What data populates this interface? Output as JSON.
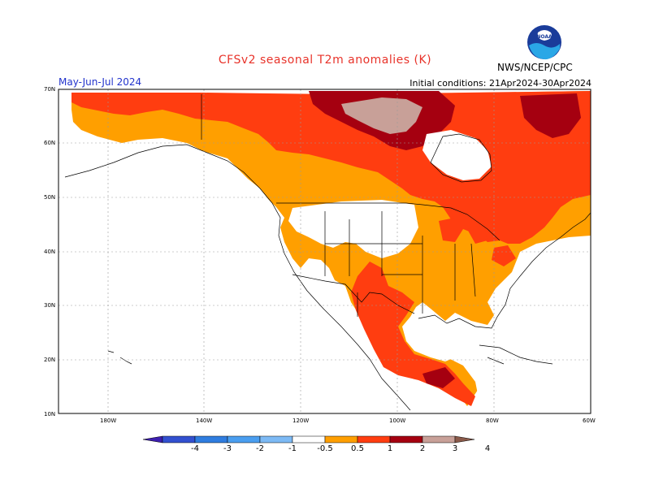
{
  "header": {
    "title": "CFSv2 seasonal T2m anomalies (K)",
    "season": "May-Jun-Jul 2024",
    "initial_conditions": "Initial conditions: 21Apr2024-30Apr2024",
    "agency": "NWS/NCEP/CPC",
    "logo_text": "NOAA"
  },
  "map": {
    "lat_labels": [
      "70N",
      "60N",
      "50N",
      "40N",
      "30N",
      "20N",
      "10N"
    ],
    "lon_labels": [
      "180W",
      "140W",
      "120W",
      "100W",
      "80W",
      "60W"
    ],
    "colors": {
      "land_outline": "#000000",
      "ocean": "#ffffff",
      "anom_0_5_1": "#ff9f00",
      "anom_1_2": "#ff3d10",
      "anom_2_3": "#a50010",
      "anom_3_4": "#c8a098"
    }
  },
  "colorbar": {
    "labels": [
      "-4",
      "-3",
      "-2",
      "-1",
      "-0.5",
      "0.5",
      "1",
      "2",
      "3",
      "4"
    ],
    "colors": [
      "#3d1fb0",
      "#3250d0",
      "#2f7de0",
      "#4a9ef0",
      "#7dbaf5",
      "#ffffff",
      "#ff9f00",
      "#ff3d10",
      "#a50010",
      "#c8a098",
      "#8a5a4a"
    ]
  }
}
